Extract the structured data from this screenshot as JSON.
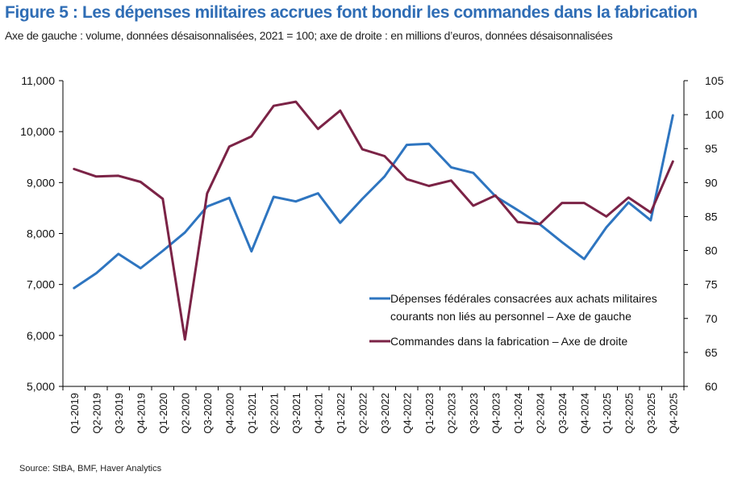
{
  "header": {
    "title": "Figure 5 : Les dépenses militaires accrues font bondir les commandes dans la fabrication",
    "subtitle": "Axe de gauche : volume, données désaisonnalisées, 2021 = 100; axe de droite : en millions d’euros, données désaisonnalisées"
  },
  "footer": {
    "source": "Source: StBA, BMF, Haver Analytics"
  },
  "chart_data": {
    "type": "line",
    "categories": [
      "Q1-2019",
      "Q2-2019",
      "Q3-2019",
      "Q4-2019",
      "Q1-2020",
      "Q2-2020",
      "Q3-2020",
      "Q4-2020",
      "Q1-2021",
      "Q2-2021",
      "Q3-2021",
      "Q4-2021",
      "Q1-2022",
      "Q2-2022",
      "Q3-2022",
      "Q4-2022",
      "Q1-2023",
      "Q2-2023",
      "Q3-2023",
      "Q4-2023",
      "Q1-2024",
      "Q2-2024",
      "Q3-2024",
      "Q4-2024",
      "Q1-2025",
      "Q2-2025",
      "Q3-2025",
      "Q4-2025"
    ],
    "left_axis": {
      "min": 5000,
      "max": 11000,
      "step": 1000,
      "tick_labels": [
        "5,000",
        "6,000",
        "7,000",
        "8,000",
        "9,000",
        "10,000",
        "11,000"
      ]
    },
    "right_axis": {
      "min": 60,
      "max": 105,
      "step": 5,
      "tick_labels": [
        "60",
        "65",
        "70",
        "75",
        "80",
        "85",
        "90",
        "95",
        "100",
        "105"
      ]
    },
    "grid": false,
    "legend_position": "center-right",
    "series": [
      {
        "name": "Dépenses fédérales consacrées aux achats militaires courants non liés au personnel – Axe de gauche",
        "legend_lines": [
          "Dépenses fédérales consacrées aux achats militaires",
          "courants non liés au personnel – Axe de gauche"
        ],
        "axis": "left",
        "color": "#2e75c0",
        "values": [
          6930,
          7220,
          7600,
          7320,
          7660,
          8020,
          8530,
          8700,
          7650,
          8720,
          8630,
          8790,
          8210,
          8680,
          9120,
          9740,
          9760,
          9300,
          9190,
          8730,
          8460,
          8180,
          7830,
          7500,
          8120,
          8610,
          8260,
          10320
        ]
      },
      {
        "name": "Commandes dans la fabrication – Axe de droite",
        "legend_lines": [
          "Commandes dans la fabrication – Axe de droite"
        ],
        "axis": "right",
        "color": "#7b2346",
        "values": [
          92.0,
          90.9,
          91.0,
          90.1,
          87.6,
          66.9,
          88.4,
          95.3,
          96.8,
          101.3,
          101.9,
          97.9,
          100.6,
          94.9,
          93.9,
          90.5,
          89.5,
          90.3,
          86.6,
          88.1,
          84.2,
          83.9,
          87.0,
          87.0,
          85.0,
          87.8,
          85.6,
          93.1
        ]
      }
    ]
  }
}
